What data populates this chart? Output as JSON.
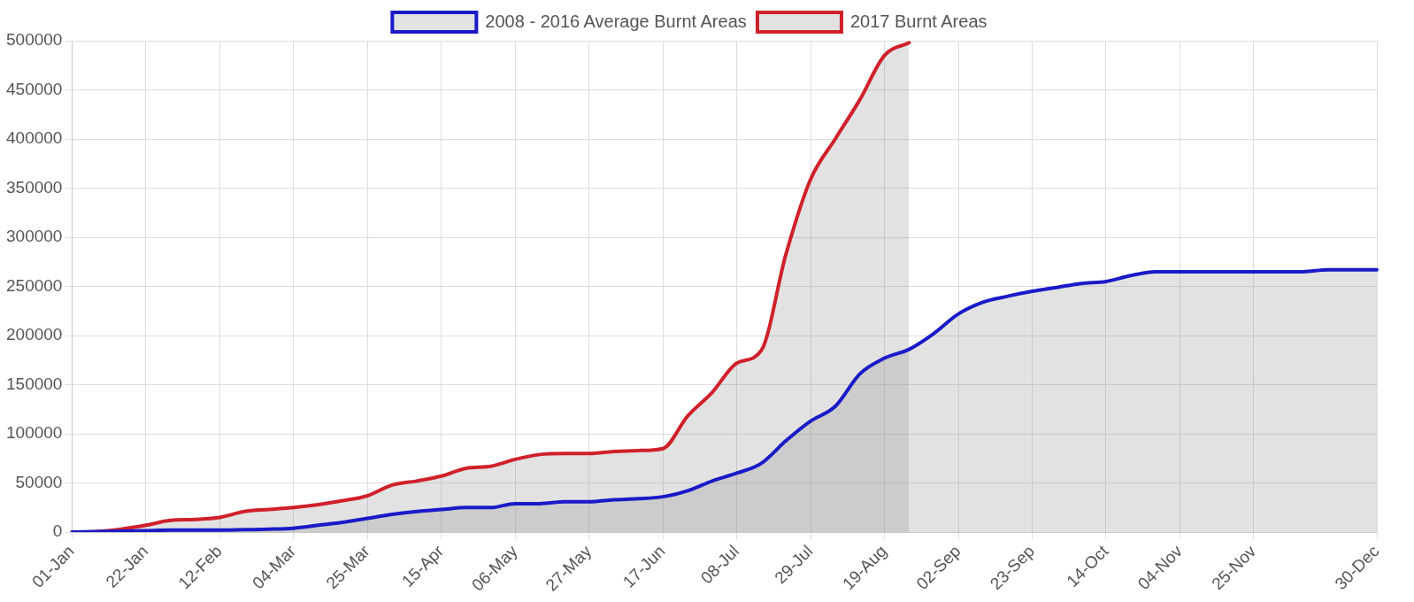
{
  "chart_data": {
    "type": "area",
    "categories": [
      "01-Jan",
      null,
      null,
      "22-Jan",
      null,
      null,
      "12-Feb",
      null,
      null,
      "04-Mar",
      null,
      null,
      "25-Mar",
      null,
      null,
      "15-Apr",
      null,
      null,
      "06-May",
      null,
      null,
      "27-May",
      null,
      null,
      "17-Jun",
      null,
      null,
      "08-Jul",
      null,
      null,
      "29-Jul",
      null,
      null,
      "19-Aug",
      null,
      null,
      "02-Sep",
      null,
      null,
      "23-Sep",
      null,
      null,
      "14-Oct",
      null,
      null,
      "04-Nov",
      null,
      null,
      "25-Nov",
      null,
      null,
      null,
      null,
      "30-Dec"
    ],
    "series": [
      {
        "name": "2008 - 2016 Average Burnt Areas",
        "color": "#1a1ac8",
        "values": [
          0,
          500,
          1000,
          1500,
          2000,
          2000,
          2000,
          2500,
          3000,
          4000,
          7000,
          10000,
          14000,
          18000,
          21000,
          23000,
          25000,
          25000,
          29000,
          29000,
          31000,
          31000,
          33000,
          34000,
          36000,
          42000,
          52000,
          60000,
          70000,
          93000,
          113000,
          128000,
          161000,
          177000,
          186000,
          202000,
          222000,
          234000,
          240000,
          245000,
          249000,
          253000,
          255000,
          261000,
          265000,
          265000,
          265000,
          265000,
          265000,
          265000,
          265000,
          267000,
          267000,
          267000
        ]
      },
      {
        "name": "2017 Burnt Areas",
        "color": "#d0202a",
        "values": [
          0,
          500,
          3000,
          7000,
          12000,
          13000,
          15000,
          21000,
          23000,
          25000,
          28000,
          32000,
          37000,
          48000,
          52000,
          57000,
          65000,
          67000,
          74000,
          79000,
          80000,
          80000,
          82000,
          83000,
          85000,
          118000,
          142000,
          172000,
          185000,
          283000,
          359000,
          400000,
          440000,
          485000,
          498000,
          null,
          null,
          null,
          null,
          null,
          null,
          null,
          null,
          null,
          null,
          null,
          null,
          null,
          null,
          null,
          null,
          null,
          null,
          null
        ]
      }
    ],
    "ylim": [
      0,
      500000
    ],
    "yticks": [
      0,
      50000,
      100000,
      150000,
      200000,
      250000,
      300000,
      350000,
      400000,
      450000,
      500000
    ],
    "grid": true,
    "legend": "top",
    "marker": "none",
    "line_style": "solid"
  }
}
